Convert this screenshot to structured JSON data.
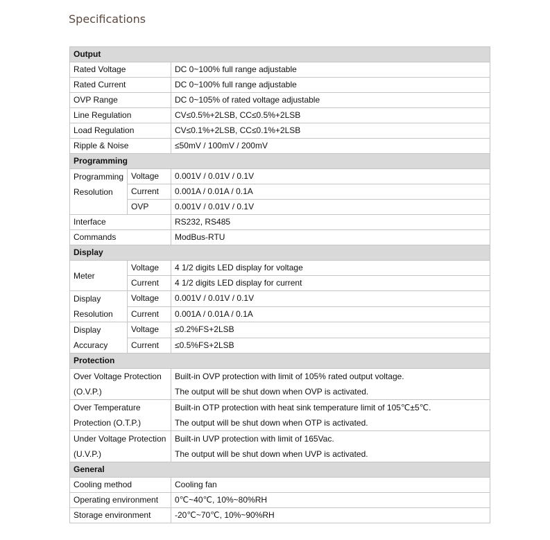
{
  "title": "Specifications",
  "sections": [
    {
      "name": "Output",
      "rows": [
        {
          "label": [
            "Rated Voltage"
          ],
          "value": [
            "DC 0~100% full range adjustable"
          ]
        },
        {
          "label": [
            "Rated Current"
          ],
          "value": [
            "DC 0~100% full range adjustable"
          ]
        },
        {
          "label": [
            "OVP Range"
          ],
          "value": [
            "DC 0~105% of rated voltage adjustable"
          ]
        },
        {
          "label": [
            "Line Regulation"
          ],
          "value": [
            "CV≤0.5%+2LSB, CC≤0.5%+2LSB"
          ]
        },
        {
          "label": [
            "Load Regulation"
          ],
          "value": [
            "CV≤0.1%+2LSB, CC≤0.1%+2LSB"
          ]
        },
        {
          "label": [
            "Ripple & Noise"
          ],
          "value": [
            "≤50mV / 100mV / 200mV"
          ]
        }
      ]
    },
    {
      "name": "Programming",
      "rows": [
        {
          "label": [
            "Programming",
            "Resolution"
          ],
          "sub": [
            {
              "name": "Voltage",
              "value": "0.001V / 0.01V / 0.1V"
            },
            {
              "name": "Current",
              "value": "0.001A / 0.01A / 0.1A"
            },
            {
              "name": "OVP",
              "value": "0.001V / 0.01V / 0.1V"
            }
          ]
        },
        {
          "label": [
            "Interface"
          ],
          "value": [
            "RS232, RS485"
          ]
        },
        {
          "label": [
            "Commands"
          ],
          "value": [
            "ModBus-RTU"
          ]
        }
      ]
    },
    {
      "name": "Display",
      "rows": [
        {
          "label": [
            "Meter"
          ],
          "middle": true,
          "sub": [
            {
              "name": "Voltage",
              "value": "4 1/2 digits LED display for voltage"
            },
            {
              "name": "Current",
              "value": "4 1/2 digits LED display for current"
            }
          ]
        },
        {
          "label": [
            "Display",
            "Resolution"
          ],
          "sub": [
            {
              "name": "Voltage",
              "value": "0.001V / 0.01V / 0.1V"
            },
            {
              "name": "Current",
              "value": "0.001A / 0.01A / 0.1A"
            }
          ]
        },
        {
          "label": [
            "Display",
            "Accuracy"
          ],
          "sub": [
            {
              "name": "Voltage",
              "value": "≤0.2%FS+2LSB"
            },
            {
              "name": "Current",
              "value": "≤0.5%FS+2LSB"
            }
          ]
        }
      ]
    },
    {
      "name": "Protection",
      "rows": [
        {
          "label": [
            "Over Voltage Protection",
            "(O.V.P.)"
          ],
          "value": [
            "Built-in OVP protection with limit of 105% rated output voltage.",
            "The output will be shut down when OVP is activated."
          ]
        },
        {
          "label": [
            "Over Temperature",
            "Protection (O.T.P.)"
          ],
          "value": [
            "Built-in OTP protection with heat sink temperature limit of 105℃±5℃.",
            "The output will be shut down when OTP is activated."
          ]
        },
        {
          "label": [
            "Under Voltage Protection",
            "(U.V.P.)"
          ],
          "value": [
            "Built-in UVP protection with limit of 165Vac.",
            "The output will be shut down when UVP is activated."
          ]
        }
      ]
    },
    {
      "name": "General",
      "rows": [
        {
          "label": [
            "Cooling method"
          ],
          "value": [
            "Cooling fan"
          ]
        },
        {
          "label": [
            "Operating environment"
          ],
          "value": [
            "0℃~40℃, 10%~80%RH"
          ]
        },
        {
          "label": [
            "Storage environment"
          ],
          "value": [
            "-20℃~70℃, 10%~90%RH"
          ]
        }
      ]
    }
  ]
}
